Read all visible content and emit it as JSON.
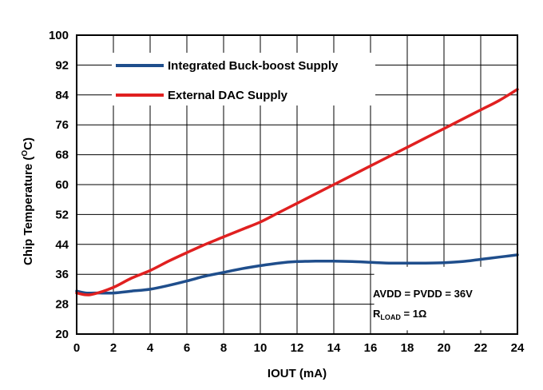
{
  "chart_data": {
    "type": "line",
    "xlabel": "IOUT (mA)",
    "ylabel_prefix": "Chip Temperature (",
    "ylabel_sup": "O",
    "ylabel_suffix": "C)",
    "xlim": [
      0,
      24
    ],
    "ylim": [
      20,
      100
    ],
    "x_ticks": [
      "0",
      "2",
      "4",
      "6",
      "8",
      "10",
      "12",
      "14",
      "16",
      "18",
      "20",
      "22",
      "24"
    ],
    "y_ticks": [
      "20",
      "28",
      "36",
      "44",
      "52",
      "60",
      "68",
      "76",
      "84",
      "92",
      "100"
    ],
    "grid": true,
    "legend_position": "top-left",
    "series": [
      {
        "name": "Integrated Buck-boost Supply",
        "color": "#1f4e8c",
        "x": [
          0,
          0.5,
          1,
          2,
          3,
          4,
          5,
          6,
          7,
          8,
          9,
          10,
          11,
          12,
          13,
          14,
          15,
          16,
          17,
          18,
          19,
          20,
          21,
          22,
          23,
          24
        ],
        "values": [
          31.5,
          31.0,
          31.0,
          31.0,
          31.5,
          32.0,
          33.0,
          34.2,
          35.5,
          36.5,
          37.5,
          38.3,
          39.0,
          39.4,
          39.5,
          39.5,
          39.4,
          39.2,
          39.0,
          39.0,
          39.0,
          39.1,
          39.4,
          40.0,
          40.6,
          41.2
        ]
      },
      {
        "name": "External DAC Supply",
        "color": "#e02020",
        "x": [
          0,
          0.5,
          1,
          2,
          3,
          4,
          5,
          6,
          7,
          8,
          9,
          10,
          11,
          12,
          13,
          14,
          15,
          16,
          17,
          18,
          19,
          20,
          21,
          22,
          23,
          24
        ],
        "values": [
          31.0,
          30.5,
          30.8,
          32.5,
          35.0,
          37.0,
          39.5,
          41.8,
          44.0,
          46.0,
          48.0,
          50.0,
          52.5,
          55.0,
          57.5,
          60.0,
          62.5,
          65.0,
          67.5,
          70.0,
          72.5,
          75.0,
          77.5,
          80.0,
          82.5,
          85.5
        ]
      }
    ],
    "annotations": {
      "line1": "AVDD = PVDD = 36V",
      "line2_main": "R",
      "line2_sub": "LOAD",
      "line2_end": " = 1Ω"
    }
  }
}
